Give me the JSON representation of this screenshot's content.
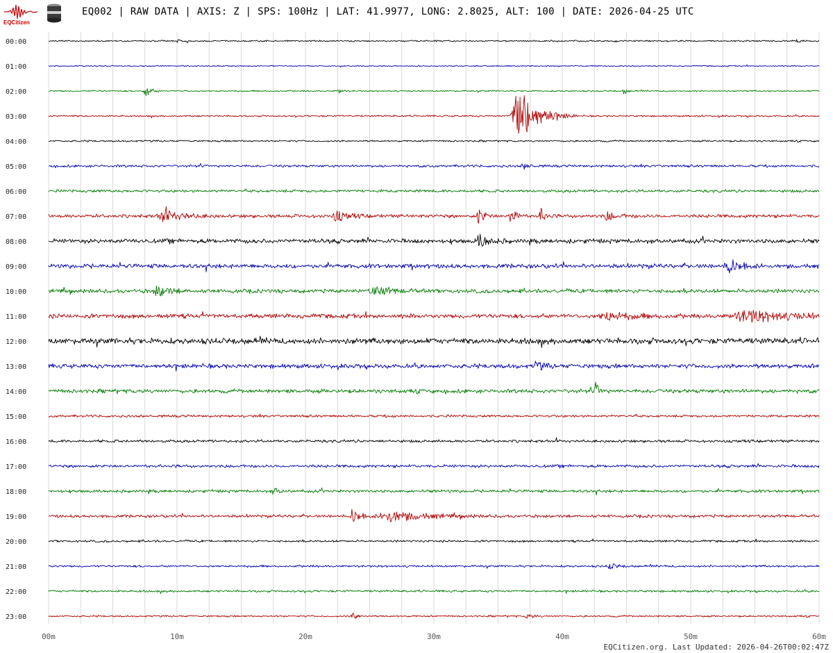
{
  "header": {
    "logo_text": "EQCitizen",
    "title": "EQ002 | RAW DATA | AXIS: Z | SPS: 100Hz | LAT: 41.9977, LONG: 2.8025, ALT: 100 | DATE: 2026-04-25 UTC"
  },
  "footer": {
    "updated": "EQCitizen.org. Last Updated: 2026-04-26T00:02:47Z"
  },
  "colors": {
    "cycle": [
      "#000000",
      "#0000b0",
      "#007a00",
      "#b00000"
    ],
    "grid": "#d8d8d8",
    "logo": "#cc0000"
  },
  "chart_data": {
    "type": "helicorder",
    "title": "EQ002 | RAW DATA | AXIS: Z | SPS: 100Hz | LAT: 41.9977, LONG: 2.8025, ALT: 100 | DATE: 2026-04-25 UTC",
    "row_labels": [
      "00:00",
      "01:00",
      "02:00",
      "03:00",
      "04:00",
      "05:00",
      "06:00",
      "07:00",
      "08:00",
      "09:00",
      "10:00",
      "11:00",
      "12:00",
      "13:00",
      "14:00",
      "15:00",
      "16:00",
      "17:00",
      "18:00",
      "19:00",
      "20:00",
      "21:00",
      "22:00",
      "23:00"
    ],
    "x_ticks": [
      "00m",
      "10m",
      "20m",
      "30m",
      "40m",
      "50m",
      "60m"
    ],
    "x_range_minutes": [
      0,
      60
    ],
    "grid": true,
    "noise_level": [
      0.15,
      0.12,
      0.15,
      0.18,
      0.18,
      0.25,
      0.28,
      0.35,
      0.45,
      0.45,
      0.4,
      0.45,
      0.6,
      0.45,
      0.4,
      0.25,
      0.28,
      0.3,
      0.3,
      0.3,
      0.22,
      0.22,
      0.22,
      0.18
    ],
    "events": [
      {
        "hour": 0,
        "minute": 10.1,
        "amp": 0.5,
        "dur": 0.3
      },
      {
        "hour": 0,
        "minute": 58.3,
        "amp": 0.5,
        "dur": 0.3
      },
      {
        "hour": 2,
        "minute": 7.5,
        "amp": 1.8,
        "dur": 0.4
      },
      {
        "hour": 2,
        "minute": 22.6,
        "amp": 0.5,
        "dur": 0.3
      },
      {
        "hour": 2,
        "minute": 44.8,
        "amp": 1.0,
        "dur": 0.2
      },
      {
        "hour": 3,
        "minute": 36.6,
        "amp": 6.0,
        "dur": 1.5
      },
      {
        "hour": 5,
        "minute": 37.0,
        "amp": 0.6,
        "dur": 0.5
      },
      {
        "hour": 7,
        "minute": 9.0,
        "amp": 1.2,
        "dur": 1.5
      },
      {
        "hour": 7,
        "minute": 22.4,
        "amp": 1.0,
        "dur": 1.0
      },
      {
        "hour": 7,
        "minute": 33.5,
        "amp": 2.0,
        "dur": 0.4
      },
      {
        "hour": 7,
        "minute": 36.0,
        "amp": 2.0,
        "dur": 0.4
      },
      {
        "hour": 7,
        "minute": 38.3,
        "amp": 1.5,
        "dur": 0.4
      },
      {
        "hour": 7,
        "minute": 43.5,
        "amp": 0.8,
        "dur": 0.8
      },
      {
        "hour": 8,
        "minute": 33.5,
        "amp": 1.3,
        "dur": 0.8
      },
      {
        "hour": 9,
        "minute": 53.0,
        "amp": 1.3,
        "dur": 1.0
      },
      {
        "hour": 10,
        "minute": 8.5,
        "amp": 1.0,
        "dur": 1.0
      },
      {
        "hour": 10,
        "minute": 25.5,
        "amp": 0.8,
        "dur": 1.5
      },
      {
        "hour": 11,
        "minute": 43.5,
        "amp": 0.8,
        "dur": 2.0
      },
      {
        "hour": 11,
        "minute": 54.5,
        "amp": 1.2,
        "dur": 3.5
      },
      {
        "hour": 13,
        "minute": 38.0,
        "amp": 0.8,
        "dur": 0.6
      },
      {
        "hour": 14,
        "minute": 42.6,
        "amp": 1.6,
        "dur": 0.3
      },
      {
        "hour": 18,
        "minute": 17.5,
        "amp": 0.6,
        "dur": 0.5
      },
      {
        "hour": 19,
        "minute": 23.7,
        "amp": 1.6,
        "dur": 0.6
      },
      {
        "hour": 19,
        "minute": 26.6,
        "amp": 1.0,
        "dur": 3.0
      },
      {
        "hour": 21,
        "minute": 43.7,
        "amp": 0.6,
        "dur": 0.6
      },
      {
        "hour": 23,
        "minute": 23.7,
        "amp": 0.8,
        "dur": 0.4
      },
      {
        "hour": 23,
        "minute": 37.3,
        "amp": 0.5,
        "dur": 0.5
      }
    ]
  }
}
